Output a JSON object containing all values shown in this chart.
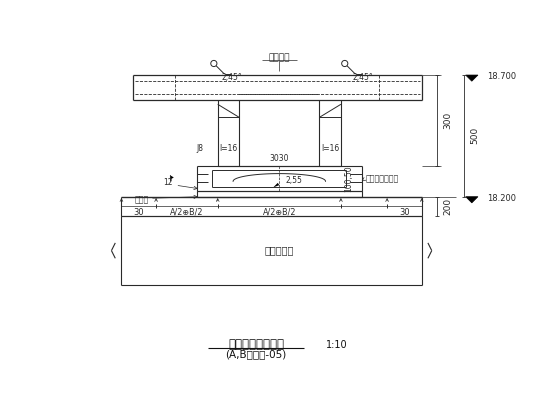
{
  "title_main": "中庭支座典型节点",
  "title_scale": "1:10",
  "title_sub": "(A,B见钢设-05)",
  "bg_color": "#ffffff",
  "line_color": "#2a2a2a",
  "dim_color": "#2a2a2a",
  "text_color": "#2a2a2a",
  "annotations": {
    "label_top_center": "铰接节点",
    "label_left_j8": "J8",
    "label_left_l16": "l=16",
    "label_right_l16": "l=16",
    "label_top_3030": "3030",
    "label_100_50": "100,50",
    "label_55": "2,55",
    "label_12": "12",
    "label_preb": "预埋板",
    "label_support": "支座由厂家提供",
    "label_concrete": "混凝土构件",
    "dim_top": "18.700",
    "dim_300": "300",
    "dim_500": "500",
    "dim_200": "200",
    "dim_bottom": "18.200",
    "dim_30_left": "30",
    "dim_30_right": "30",
    "dim_ab_left": "A/2⊕B/2",
    "dim_ab_right": "A/2⊕B/2",
    "angle_45_left": "2,45°",
    "angle_45_right": "2,45°"
  }
}
